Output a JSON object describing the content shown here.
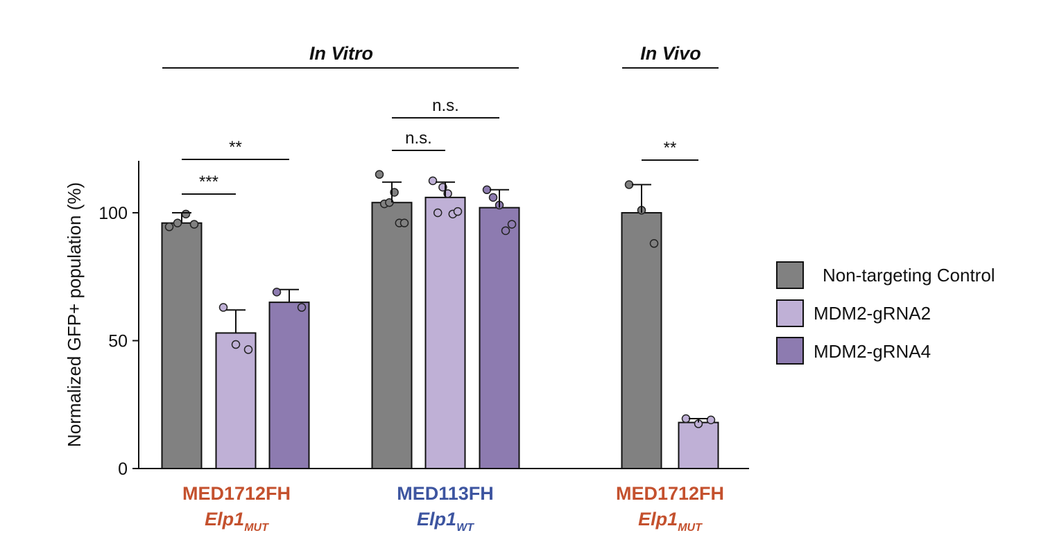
{
  "chart_data": {
    "type": "bar",
    "ylabel": "Normalized GFP+ population (%)",
    "ylim": [
      0,
      120
    ],
    "yticks": [
      0,
      50,
      100
    ],
    "colors": {
      "control": "#818181",
      "grna2": "#bfb0d6",
      "grna4": "#8d7bb0",
      "orange": "#c4512e",
      "blue": "#3d55a0"
    },
    "sections": [
      {
        "label": "In Vitro"
      },
      {
        "label": "In Vivo"
      }
    ],
    "series": [
      {
        "name": "Non-targeting Control",
        "values": [
          96,
          104,
          100
        ],
        "errors": [
          4,
          8,
          11
        ]
      },
      {
        "name": "MDM2-gRNA2",
        "values": [
          53,
          106,
          0,
          18
        ],
        "errors": [
          9,
          6,
          0,
          1.5
        ]
      },
      {
        "name": "MDM2-gRNA4",
        "values": [
          65,
          102
        ],
        "errors": [
          5,
          7
        ]
      }
    ],
    "bars": [
      {
        "group": 0,
        "series": 0,
        "value": 96,
        "err": 4,
        "points": [
          94.5,
          96,
          99.5,
          95.5
        ]
      },
      {
        "group": 0,
        "series": 1,
        "value": 53,
        "err": 9,
        "points": [
          63,
          48.5,
          46.5
        ]
      },
      {
        "group": 0,
        "series": 2,
        "value": 65,
        "err": 5,
        "points": [
          69,
          63
        ]
      },
      {
        "group": 1,
        "series": 0,
        "value": 104,
        "err": 8,
        "points": [
          115,
          103.5,
          104,
          108,
          96,
          96
        ]
      },
      {
        "group": 1,
        "series": 1,
        "value": 106,
        "err": 6,
        "points": [
          112.5,
          100,
          110,
          107.5,
          99.5,
          100.5
        ]
      },
      {
        "group": 1,
        "series": 2,
        "value": 102,
        "err": 7,
        "points": [
          109,
          106,
          103,
          93,
          95.5
        ]
      },
      {
        "group": 2,
        "series": 0,
        "value": 100,
        "err": 11,
        "points": [
          111,
          101,
          88
        ]
      },
      {
        "group": 2,
        "series": 1,
        "value": 18,
        "err": 1.5,
        "points": [
          19.5,
          17.5,
          19
        ]
      }
    ],
    "groups": [
      {
        "name": "MED1712FH",
        "gene": "Elp1",
        "sub": "MUT",
        "color_key": "orange"
      },
      {
        "name": "MED113FH",
        "gene": "Elp1",
        "sub": "WT",
        "color_key": "blue"
      },
      {
        "name": "MED1712FH",
        "gene": "Elp1",
        "sub": "MUT",
        "color_key": "orange"
      }
    ],
    "significance": [
      {
        "label": "**",
        "from_bar": 0,
        "to_bar": 2
      },
      {
        "label": "***",
        "from_bar": 0,
        "to_bar": 1
      },
      {
        "label": "n.s.",
        "from_bar": 3,
        "to_bar": 5
      },
      {
        "label": "n.s.",
        "from_bar": 3,
        "to_bar": 4
      },
      {
        "label": "**",
        "from_bar": 6,
        "to_bar": 7
      }
    ],
    "legend": {
      "position": "right",
      "items": [
        {
          "label": "Non-targeting Control",
          "color_key": "control"
        },
        {
          "label": "MDM2-gRNA2",
          "color_key": "grna2"
        },
        {
          "label": "MDM2-gRNA4",
          "color_key": "grna4"
        }
      ]
    }
  }
}
